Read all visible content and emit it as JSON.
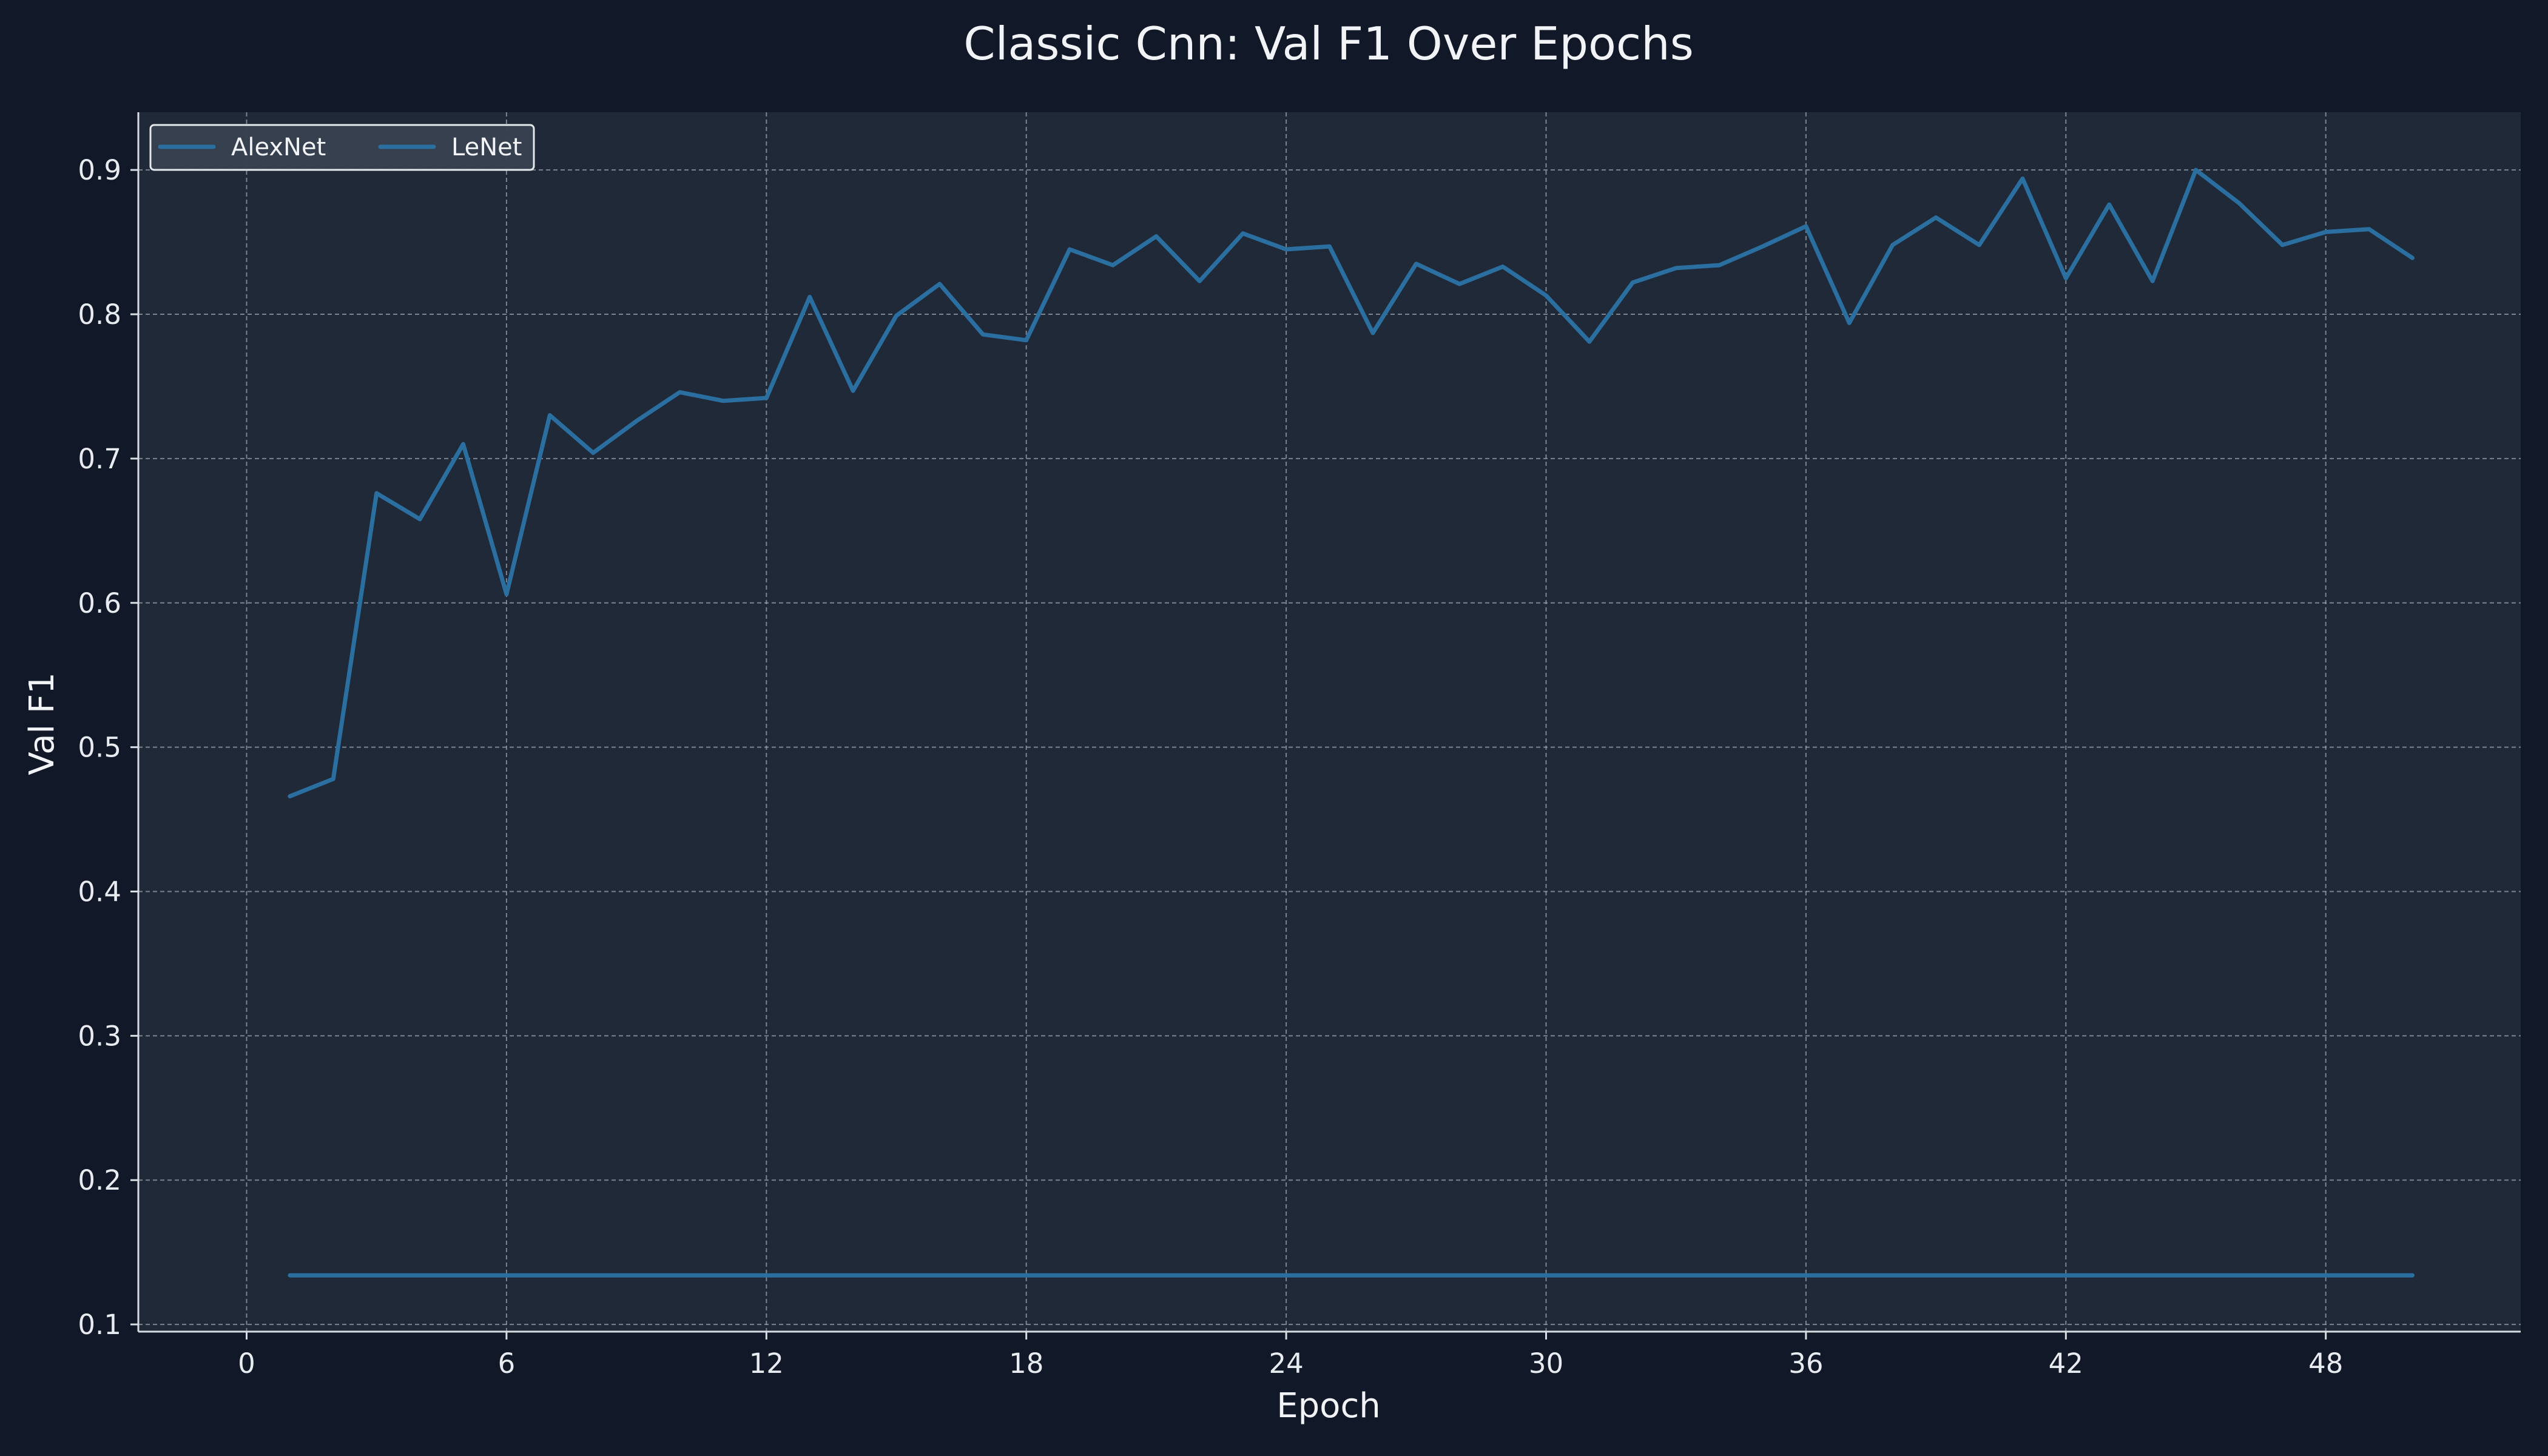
{
  "chart_data": {
    "type": "line",
    "title": "Classic Cnn: Val F1 Over Epochs",
    "xlabel": "Epoch",
    "ylabel": "Val F1",
    "xlim": [
      -2.5,
      52.5
    ],
    "ylim": [
      0.095,
      0.94
    ],
    "xticks": [
      0,
      6,
      12,
      18,
      24,
      30,
      36,
      42,
      48
    ],
    "yticks": [
      0.1,
      0.2,
      0.3,
      0.4,
      0.5,
      0.6,
      0.7,
      0.8,
      0.9
    ],
    "ytick_labels": [
      "0.1",
      "0.2",
      "0.3",
      "0.4",
      "0.5",
      "0.6",
      "0.7",
      "0.8",
      "0.9"
    ],
    "grid": true,
    "legend_position": "top-left",
    "colors": {
      "page_background": "#111827",
      "plot_background": "#1f2937",
      "line": "#2a6fa0",
      "grid": "#9aa3ad",
      "text": "#f1f3f6"
    },
    "x": [
      1,
      2,
      3,
      4,
      5,
      6,
      7,
      8,
      9,
      10,
      11,
      12,
      13,
      14,
      15,
      16,
      17,
      18,
      19,
      20,
      21,
      22,
      23,
      24,
      25,
      26,
      27,
      28,
      29,
      30,
      31,
      32,
      33,
      34,
      35,
      36,
      37,
      38,
      39,
      40,
      41,
      42,
      43,
      44,
      45,
      46,
      47,
      48,
      49,
      50
    ],
    "series": [
      {
        "name": "AlexNet",
        "values": [
          0.466,
          0.478,
          0.676,
          0.658,
          0.71,
          0.606,
          0.73,
          0.704,
          0.726,
          0.746,
          0.74,
          0.742,
          0.812,
          0.747,
          0.799,
          0.821,
          0.786,
          0.782,
          0.845,
          0.834,
          0.854,
          0.823,
          0.856,
          0.845,
          0.847,
          0.787,
          0.835,
          0.821,
          0.833,
          0.813,
          0.781,
          0.822,
          0.832,
          0.834,
          0.847,
          0.861,
          0.794,
          0.848,
          0.867,
          0.848,
          0.894,
          0.825,
          0.876,
          0.823,
          0.9,
          0.877,
          0.848,
          0.857,
          0.859,
          0.839
        ]
      },
      {
        "name": "LeNet",
        "values": [
          0.134,
          0.134,
          0.134,
          0.134,
          0.134,
          0.134,
          0.134,
          0.134,
          0.134,
          0.134,
          0.134,
          0.134,
          0.134,
          0.134,
          0.134,
          0.134,
          0.134,
          0.134,
          0.134,
          0.134,
          0.134,
          0.134,
          0.134,
          0.134,
          0.134,
          0.134,
          0.134,
          0.134,
          0.134,
          0.134,
          0.134,
          0.134,
          0.134,
          0.134,
          0.134,
          0.134,
          0.134,
          0.134,
          0.134,
          0.134,
          0.134,
          0.134,
          0.134,
          0.134,
          0.134,
          0.134,
          0.134,
          0.134,
          0.134,
          0.134
        ]
      }
    ]
  }
}
